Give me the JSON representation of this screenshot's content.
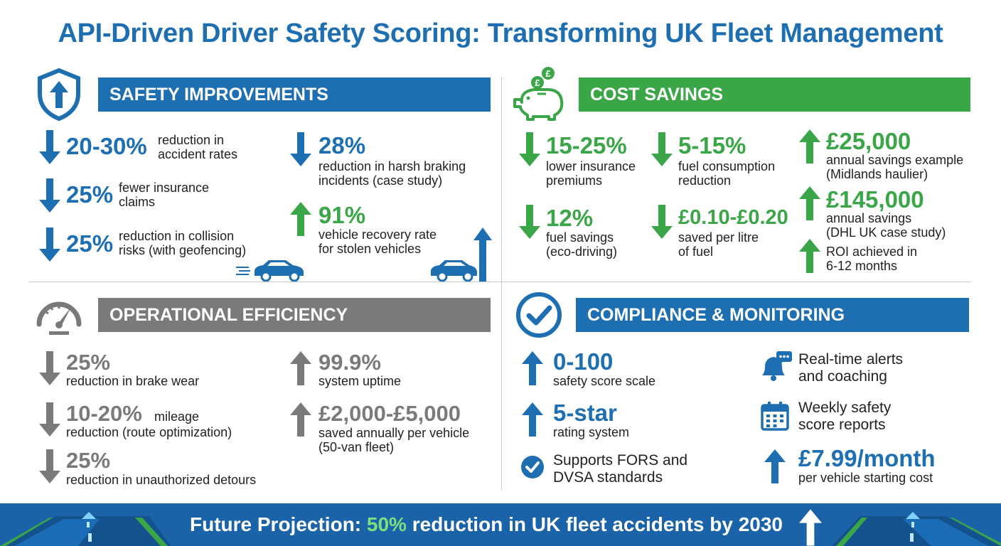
{
  "title": "API-Driven Driver Safety Scoring: Transforming UK Fleet Management",
  "colors": {
    "blue": "#1e6fb2",
    "green": "#3aa648",
    "gray": "#7a7a7a",
    "footer": "#1a63a8"
  },
  "safety": {
    "heading": "SAFETY IMPROVEMENTS",
    "icon": "shield-arrow-up-icon",
    "stats": [
      {
        "value": "20-30%",
        "label1": "reduction in",
        "label2": "accident rates",
        "dir": "down"
      },
      {
        "value": "25%",
        "label1": "fewer insurance",
        "label2": "claims",
        "dir": "down"
      },
      {
        "value": "25%",
        "label1": "reduction in collision",
        "label2": "risks (with geofencing)",
        "dir": "down"
      },
      {
        "value": "28%",
        "label1": "reduction in harsh braking",
        "label2": "incidents (case study)",
        "dir": "down"
      },
      {
        "value": "91%",
        "label1": "vehicle recovery rate",
        "label2": "for stolen vehicles",
        "dir": "up"
      }
    ]
  },
  "cost": {
    "heading": "COST SAVINGS",
    "icon": "piggy-bank-icon",
    "stats": [
      {
        "value": "15-25%",
        "label1": "lower insurance",
        "label2": "premiums",
        "dir": "down"
      },
      {
        "value": "5-15%",
        "label1": "fuel consumption",
        "label2": "reduction",
        "dir": "down"
      },
      {
        "value": "12%",
        "label1": "fuel savings",
        "label2": "(eco-driving)",
        "dir": "down"
      },
      {
        "value": "£0.10-£0.20",
        "label1": "saved per litre",
        "label2": "of fuel",
        "dir": "down"
      },
      {
        "value": "£25,000",
        "label1": "annual savings example",
        "label2": "(Midlands haulier)",
        "dir": "up"
      },
      {
        "value": "£145,000",
        "label1": "annual savings",
        "label2": "(DHL UK case study)",
        "dir": "up"
      },
      {
        "value": "",
        "label1": "ROI achieved in",
        "label2": "6-12 months",
        "dir": "up"
      }
    ]
  },
  "ops": {
    "heading": "OPERATIONAL EFFICIENCY",
    "icon": "speedometer-icon",
    "stats": [
      {
        "value": "25%",
        "label1": "reduction in brake wear",
        "dir": "down"
      },
      {
        "value": "10-20%",
        "inline": "mileage",
        "label1": "reduction (route optimization)",
        "dir": "down"
      },
      {
        "value": "25%",
        "label1": "reduction in unauthorized detours",
        "dir": "down"
      },
      {
        "value": "99.9%",
        "label1": "system uptime",
        "dir": "up"
      },
      {
        "value": "£2,000-£5,000",
        "label1": "saved annually per vehicle",
        "label2": "(50-van fleet)",
        "dir": "up"
      }
    ]
  },
  "compliance": {
    "heading": "COMPLIANCE & MONITORING",
    "icon": "check-circle-icon",
    "stats": [
      {
        "value": "0-100",
        "label1": "safety score scale",
        "dir": "up"
      },
      {
        "value": "5-star",
        "label1": "rating system",
        "dir": "up"
      },
      {
        "label1": "Supports FORS and",
        "label2": "DVSA standards",
        "icon": "check-badge-icon"
      },
      {
        "label1": "Real-time alerts",
        "label2": "and coaching",
        "icon": "bell-chat-icon"
      },
      {
        "label1": "Weekly safety",
        "label2": "score reports",
        "icon": "calendar-icon"
      },
      {
        "value": "£7.99/month",
        "label1": "per vehicle starting cost",
        "dir": "up"
      }
    ]
  },
  "footer": {
    "prefix": "Future Projection: ",
    "highlight": "50%",
    "suffix": " reduction in UK fleet accidents by 2030"
  }
}
